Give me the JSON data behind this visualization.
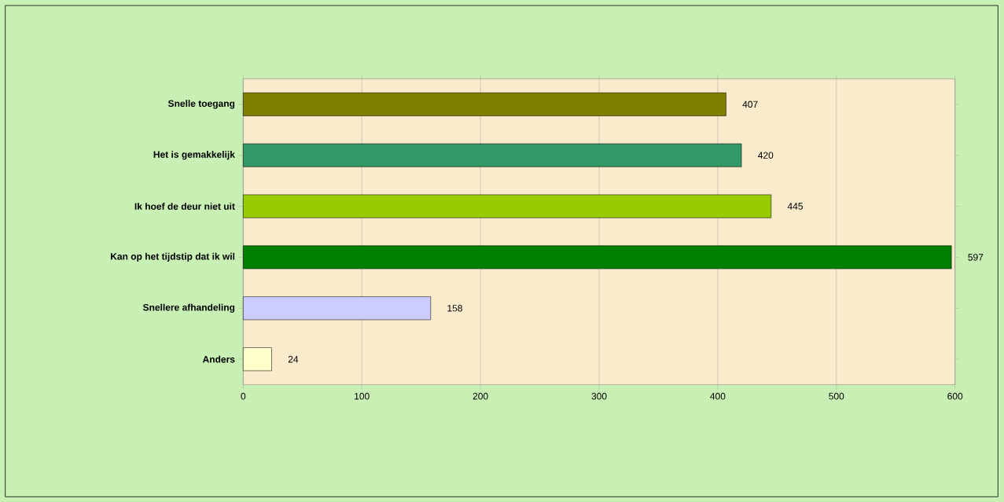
{
  "chart_data": {
    "type": "bar",
    "orientation": "horizontal",
    "categories": [
      "Snelle toegang",
      "Het is gemakkelijk",
      "Ik hoef de deur niet uit",
      "Kan op het tijdstip dat ik wil",
      "Snellere afhandeling",
      "Anders"
    ],
    "values": [
      407,
      420,
      445,
      597,
      158,
      24
    ],
    "colors": [
      "#808000",
      "#339966",
      "#99cc00",
      "#008000",
      "#ccccff",
      "#ffffcc"
    ],
    "xlim": [
      0,
      600
    ],
    "xticks": [
      0,
      100,
      200,
      300,
      400,
      500,
      600
    ],
    "grid": "x",
    "data_labels": true
  }
}
